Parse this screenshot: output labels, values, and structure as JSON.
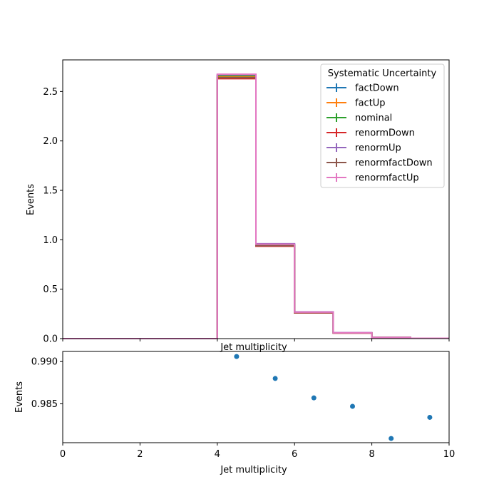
{
  "chart_data": [
    {
      "type": "step",
      "xlabel": "Jet multiplicity",
      "ylabel": "Events",
      "xlim": [
        0,
        10
      ],
      "ylim": [
        0,
        2.82
      ],
      "y_ticks": [
        "0.0",
        "0.5",
        "1.0",
        "1.5",
        "2.0",
        "2.5"
      ],
      "y_tick_values": [
        0,
        0.5,
        1.0,
        1.5,
        2.0,
        2.5
      ],
      "bin_edges": [
        0,
        1,
        2,
        3,
        4,
        5,
        6,
        7,
        8,
        9,
        10
      ],
      "legend": {
        "title": "Systematic Uncertainty",
        "placement": "upper right"
      },
      "series": [
        {
          "name": "factDown",
          "color": "#1f77b4",
          "values": [
            0,
            0,
            0,
            0,
            2.66,
            0.955,
            0.265,
            0.058,
            0.012,
            0.004
          ]
        },
        {
          "name": "factUp",
          "color": "#ff7f0e",
          "values": [
            0,
            0,
            0,
            0,
            2.65,
            0.945,
            0.262,
            0.057,
            0.012,
            0.004
          ]
        },
        {
          "name": "nominal",
          "color": "#2ca02c",
          "values": [
            0,
            0,
            0,
            0,
            2.66,
            0.95,
            0.264,
            0.058,
            0.012,
            0.004
          ]
        },
        {
          "name": "renormDown",
          "color": "#d62728",
          "values": [
            0,
            0,
            0,
            0,
            2.63,
            0.935,
            0.26,
            0.056,
            0.012,
            0.004
          ]
        },
        {
          "name": "renormUp",
          "color": "#9467bd",
          "values": [
            0,
            0,
            0,
            0,
            2.67,
            0.96,
            0.27,
            0.06,
            0.012,
            0.004
          ]
        },
        {
          "name": "renormfactDown",
          "color": "#8c564b",
          "values": [
            0,
            0,
            0,
            0,
            2.64,
            0.94,
            0.262,
            0.057,
            0.012,
            0.004
          ]
        },
        {
          "name": "renormfactUp",
          "color": "#e377c2",
          "values": [
            0,
            0,
            0,
            0,
            2.675,
            0.955,
            0.268,
            0.059,
            0.012,
            0.004
          ]
        }
      ]
    },
    {
      "type": "scatter",
      "xlabel": "Jet multiplicity",
      "ylabel": "Events",
      "xlim": [
        0,
        10
      ],
      "ylim": [
        0.9804,
        0.9912
      ],
      "x_ticks": [
        "0",
        "2",
        "4",
        "6",
        "8",
        "10"
      ],
      "x_tick_values": [
        0,
        2,
        4,
        6,
        8,
        10
      ],
      "y_ticks": [
        "0.985",
        "0.990"
      ],
      "y_tick_values": [
        0.985,
        0.99
      ],
      "color": "#1f77b4",
      "x": [
        4.5,
        5.5,
        6.5,
        7.5,
        8.5,
        9.5
      ],
      "y": [
        0.9906,
        0.988,
        0.9857,
        0.9847,
        0.9809,
        0.9834
      ]
    }
  ]
}
